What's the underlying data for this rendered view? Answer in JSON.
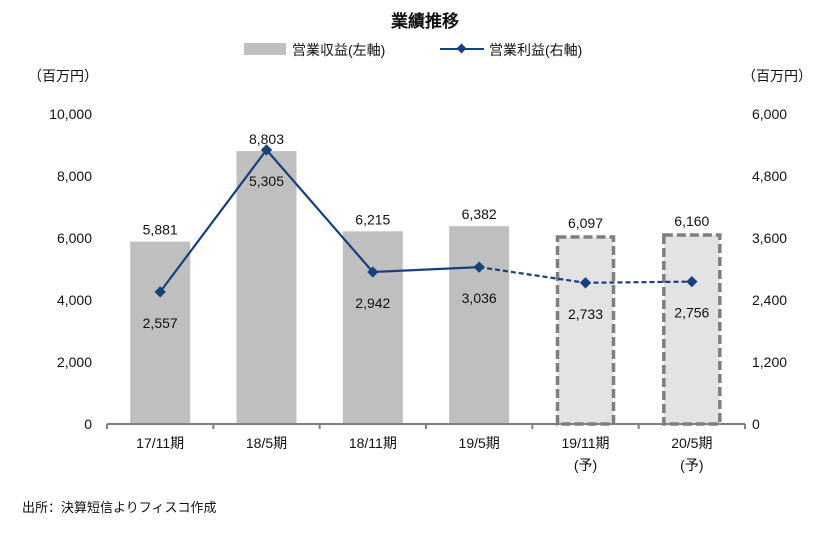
{
  "chart_data": {
    "type": "bar+line",
    "title": "業績推移",
    "categories": [
      "17/11期",
      "18/5期",
      "18/11期",
      "19/5期",
      "19/11期\n(予)",
      "20/5期\n(予)"
    ],
    "forecast_flags": [
      false,
      false,
      false,
      false,
      true,
      true
    ],
    "series": [
      {
        "name": "営業収益(左軸)",
        "type": "bar",
        "axis": "left",
        "values": [
          5881,
          8803,
          6215,
          6382,
          6097,
          6160
        ],
        "labels": [
          "5,881",
          "8,803",
          "6,215",
          "6,382",
          "6,097",
          "6,160"
        ],
        "color": "#bfbfbf",
        "forecast_fill": "#e3e3e3",
        "forecast_border": "#7f7f7f"
      },
      {
        "name": "営業利益(右軸)",
        "type": "line",
        "axis": "right",
        "values": [
          2557,
          5305,
          2942,
          3036,
          2733,
          2756
        ],
        "labels": [
          "2,557",
          "5,305",
          "2,942",
          "3,036",
          "2,733",
          "2,756"
        ],
        "color": "#17407e"
      }
    ],
    "left_axis": {
      "unit": "（百万円）",
      "range": [
        0,
        10000
      ],
      "ticks": [
        "0",
        "2,000",
        "4,000",
        "6,000",
        "8,000",
        "10,000"
      ]
    },
    "right_axis": {
      "unit": "（百万円）",
      "range": [
        0,
        6000
      ],
      "ticks": [
        "0",
        "1,200",
        "2,400",
        "3,600",
        "4,800",
        "6,000"
      ]
    },
    "legend_position": "top",
    "grid": false
  },
  "source": "出所：決算短信よりフィスコ作成"
}
